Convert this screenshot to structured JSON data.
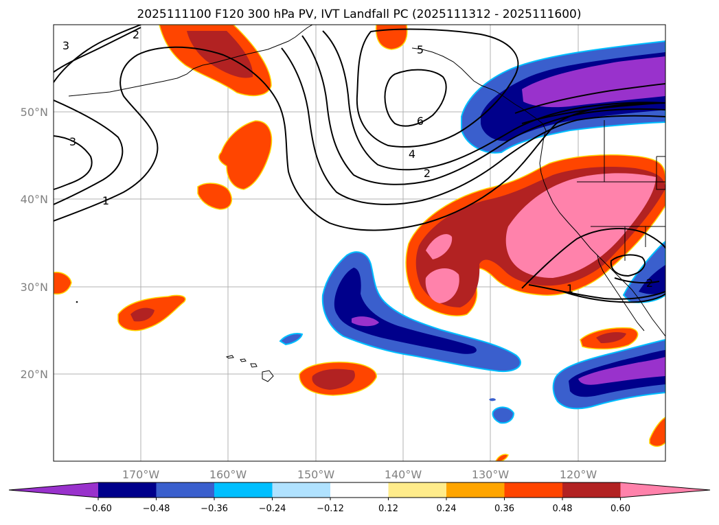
{
  "title": "2025111100 F120 300 hPa PV, IVT Landfall PC (2025111312 - 2025111600)",
  "lat_labels": [
    "50°N",
    "40°N",
    "30°N",
    "20°N"
  ],
  "lon_labels": [
    "170°W",
    "160°W",
    "150°W",
    "140°W",
    "130°W",
    "120°W"
  ],
  "colorbar": {
    "colors": [
      "#9932cc",
      "#00008b",
      "#3a5fcd",
      "#00bfff",
      "#b0e2ff",
      "#ffffff",
      "#ffec8b",
      "#ffa500",
      "#ff4500",
      "#b22222",
      "#ff82ab"
    ],
    "ticks": [
      "−0.60",
      "−0.48",
      "−0.36",
      "−0.24",
      "−0.12",
      "0.12",
      "0.24",
      "0.36",
      "0.48",
      "0.60"
    ]
  },
  "contour_labels": [
    "3",
    "2",
    "3",
    "1",
    "5",
    "6",
    "4",
    "2",
    "1",
    "2"
  ]
}
